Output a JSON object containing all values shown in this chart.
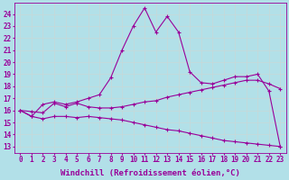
{
  "line1_x": [
    0,
    1,
    2,
    3,
    4,
    5,
    6,
    7,
    8,
    9,
    10,
    11,
    12,
    13,
    14,
    15,
    16,
    17,
    18,
    19,
    20,
    21,
    22,
    23
  ],
  "line1_y": [
    16.0,
    15.5,
    16.5,
    16.7,
    16.5,
    16.7,
    17.0,
    17.3,
    18.7,
    21.0,
    23.0,
    24.5,
    22.5,
    23.8,
    22.5,
    19.2,
    18.3,
    18.2,
    18.5,
    18.8,
    18.8,
    19.0,
    17.6,
    13.0
  ],
  "line2_x": [
    0,
    1,
    2,
    3,
    4,
    5,
    6,
    7,
    8,
    9,
    10,
    11,
    12,
    13,
    14,
    15,
    16,
    17,
    18,
    19,
    20,
    21,
    22,
    23
  ],
  "line2_y": [
    16.0,
    15.9,
    15.8,
    16.6,
    16.3,
    16.6,
    16.3,
    16.2,
    16.2,
    16.3,
    16.5,
    16.7,
    16.8,
    17.1,
    17.3,
    17.5,
    17.7,
    17.9,
    18.1,
    18.3,
    18.5,
    18.5,
    18.2,
    17.8
  ],
  "line3_x": [
    0,
    1,
    2,
    3,
    4,
    5,
    6,
    7,
    8,
    9,
    10,
    11,
    12,
    13,
    14,
    15,
    16,
    17,
    18,
    19,
    20,
    21,
    22,
    23
  ],
  "line3_y": [
    16.0,
    15.5,
    15.3,
    15.5,
    15.5,
    15.4,
    15.5,
    15.4,
    15.3,
    15.2,
    15.0,
    14.8,
    14.6,
    14.4,
    14.3,
    14.1,
    13.9,
    13.7,
    13.5,
    13.4,
    13.3,
    13.2,
    13.1,
    13.0
  ],
  "line_color": "#990099",
  "bg_color": "#b2e0e8",
  "grid_color": "#c8d8d8",
  "xlabel": "Windchill (Refroidissement éolien,°C)",
  "xlim": [
    -0.5,
    23.5
  ],
  "ylim": [
    12.5,
    24.9
  ],
  "yticks": [
    13,
    14,
    15,
    16,
    17,
    18,
    19,
    20,
    21,
    22,
    23,
    24
  ],
  "xticks": [
    0,
    1,
    2,
    3,
    4,
    5,
    6,
    7,
    8,
    9,
    10,
    11,
    12,
    13,
    14,
    15,
    16,
    17,
    18,
    19,
    20,
    21,
    22,
    23
  ],
  "xlabel_fontsize": 6.5,
  "tick_fontsize": 5.5
}
